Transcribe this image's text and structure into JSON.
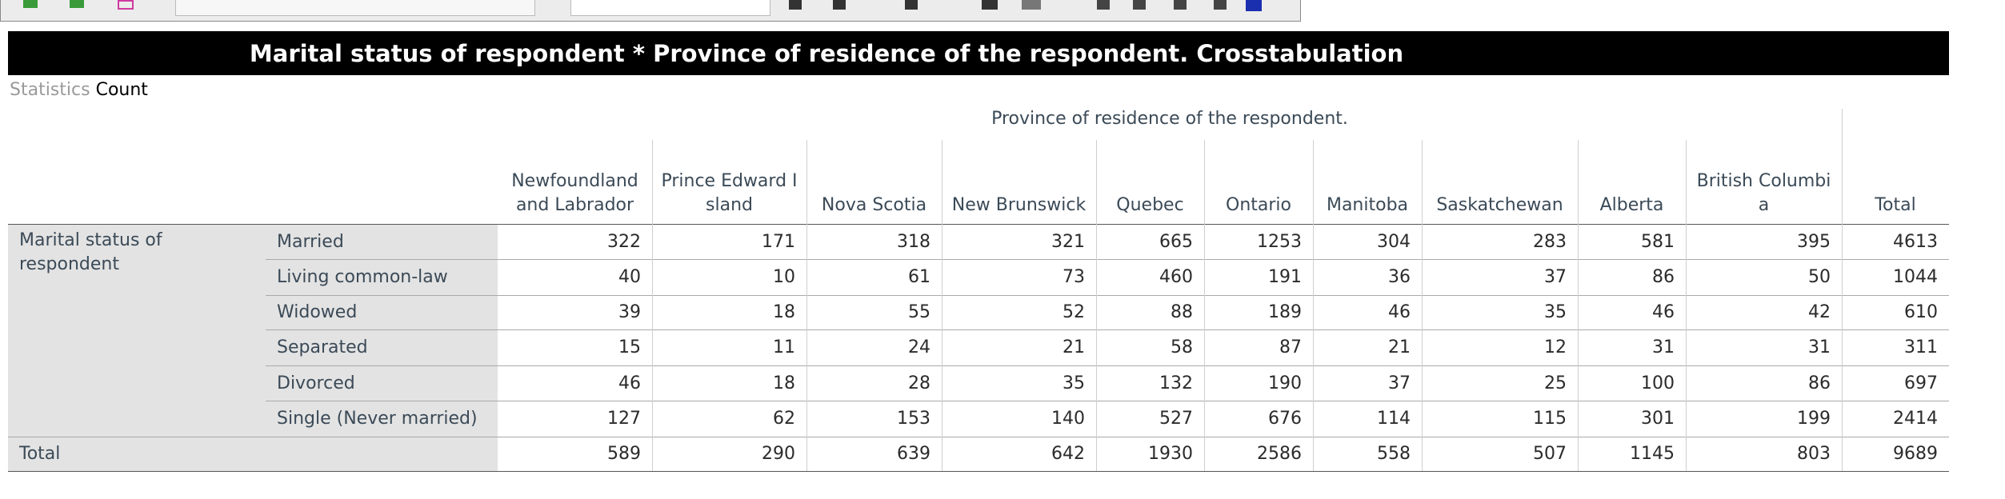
{
  "table": {
    "title": "Marital status of respondent * Province of residence of the respondent. Crosstabulation",
    "statistics_label": "Statistics",
    "statistics_value": "Count",
    "column_group": "Province of residence of the respondent.",
    "columns": [
      "Newfoundland and Labrador",
      "Prince Edward Island",
      "Nova Scotia",
      "New Brunswick",
      "Quebec",
      "Ontario",
      "Manitoba",
      "Saskatchewan",
      "Alberta",
      "British Columbia",
      "Total"
    ],
    "row_group": "Marital status of respondent",
    "rows": [
      {
        "label": "Married",
        "values": [
          322,
          171,
          318,
          321,
          665,
          1253,
          304,
          283,
          581,
          395,
          4613
        ]
      },
      {
        "label": "Living common-law",
        "values": [
          40,
          10,
          61,
          73,
          460,
          191,
          36,
          37,
          86,
          50,
          1044
        ]
      },
      {
        "label": "Widowed",
        "values": [
          39,
          18,
          55,
          52,
          88,
          189,
          46,
          35,
          46,
          42,
          610
        ]
      },
      {
        "label": "Separated",
        "values": [
          15,
          11,
          24,
          21,
          58,
          87,
          21,
          12,
          31,
          31,
          311
        ]
      },
      {
        "label": "Divorced",
        "values": [
          46,
          18,
          28,
          35,
          132,
          190,
          37,
          25,
          100,
          86,
          697
        ]
      },
      {
        "label": "Single (Never married)",
        "values": [
          127,
          62,
          153,
          140,
          527,
          676,
          114,
          115,
          301,
          199,
          2414
        ]
      }
    ],
    "total": {
      "label": "Total",
      "values": [
        589,
        290,
        639,
        642,
        1930,
        2586,
        558,
        507,
        1145,
        803,
        9689
      ]
    }
  }
}
